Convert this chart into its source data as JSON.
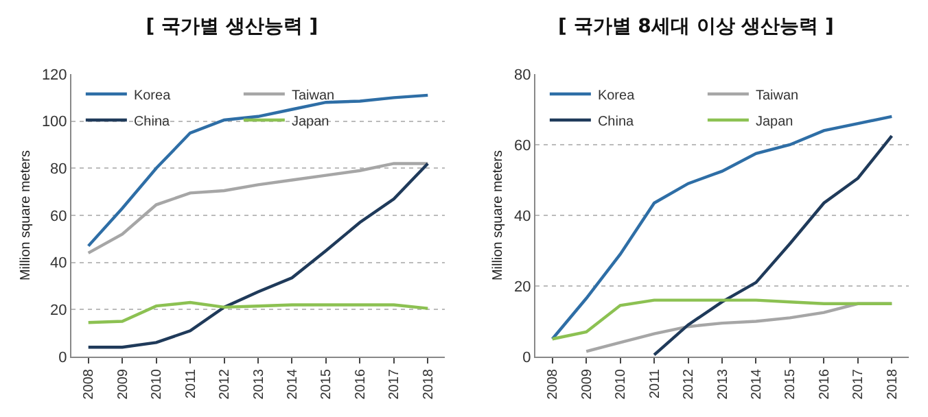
{
  "chart_data": [
    {
      "type": "line",
      "title": "[ 국가별 생산능력 ]",
      "ylabel": "Million square meters",
      "categories": [
        "2008",
        "2009",
        "2010",
        "2011",
        "2012",
        "2013",
        "2014",
        "2015",
        "2016",
        "2017",
        "2018"
      ],
      "ylim": [
        0,
        120
      ],
      "yticks": [
        0,
        20,
        40,
        60,
        80,
        100,
        120
      ],
      "grid": "y",
      "legend": "top left",
      "marker": "none",
      "series": [
        {
          "name": "Korea",
          "color": "#2e6ea6",
          "values": [
            47,
            63,
            80,
            95,
            100.5,
            102,
            105,
            108,
            108.5,
            110,
            111
          ]
        },
        {
          "name": "Taiwan",
          "color": "#a6a6a6",
          "values": [
            44,
            52,
            64.5,
            69.5,
            70.5,
            73,
            75,
            77,
            79,
            82,
            82
          ]
        },
        {
          "name": "China",
          "color": "#1f3a5a",
          "values": [
            4,
            4,
            6,
            11,
            21,
            27.5,
            33.5,
            45,
            57,
            67,
            82
          ]
        },
        {
          "name": "Japan",
          "color": "#8cc152",
          "values": [
            14.5,
            15,
            21.5,
            23,
            21,
            21.5,
            22,
            22,
            22,
            22,
            20.5
          ]
        }
      ]
    },
    {
      "type": "line",
      "title": "[ 국가별 8세대 이상 생산능력 ]",
      "ylabel": "Million square meters",
      "categories": [
        "2008",
        "2009",
        "2010",
        "2011",
        "2012",
        "2013",
        "2014",
        "2015",
        "2016",
        "2017",
        "2018"
      ],
      "ylim": [
        0,
        80
      ],
      "yticks": [
        0,
        20,
        40,
        60,
        80
      ],
      "grid": "y",
      "legend": "top left",
      "marker": "none",
      "series": [
        {
          "name": "Korea",
          "color": "#2e6ea6",
          "values": [
            5,
            16.5,
            29,
            43.5,
            49,
            52.5,
            57.5,
            60,
            64,
            66,
            68
          ]
        },
        {
          "name": "Taiwan",
          "color": "#a6a6a6",
          "values": [
            null,
            1.5,
            4,
            6.5,
            8.5,
            9.5,
            10,
            11,
            12.5,
            15,
            15
          ]
        },
        {
          "name": "China",
          "color": "#1f3a5a",
          "values": [
            null,
            null,
            null,
            0.5,
            9,
            15.5,
            21,
            32,
            43.5,
            50.5,
            62.5
          ]
        },
        {
          "name": "Japan",
          "color": "#8cc152",
          "values": [
            5,
            7,
            14.5,
            16,
            16,
            16,
            16,
            15.5,
            15,
            15,
            15
          ]
        }
      ]
    }
  ]
}
